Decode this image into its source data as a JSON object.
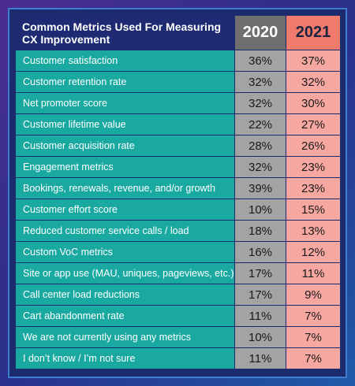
{
  "chart_data": {
    "type": "table",
    "title": "Common Metrics Used For Measuring CX Improvement",
    "columns": [
      "2020",
      "2021"
    ],
    "rows": [
      {
        "label": "Customer satisfaction",
        "v2020": "36%",
        "v2021": "37%"
      },
      {
        "label": "Customer retention rate",
        "v2020": "32%",
        "v2021": "32%"
      },
      {
        "label": "Net promoter score",
        "v2020": "32%",
        "v2021": "30%"
      },
      {
        "label": "Customer lifetime value",
        "v2020": "22%",
        "v2021": "27%"
      },
      {
        "label": "Customer acquisition rate",
        "v2020": "28%",
        "v2021": "26%"
      },
      {
        "label": "Engagement metrics",
        "v2020": "32%",
        "v2021": "23%"
      },
      {
        "label": "Bookings, renewals, revenue, and/or growth",
        "v2020": "39%",
        "v2021": "23%"
      },
      {
        "label": "Customer effort score",
        "v2020": "10%",
        "v2021": "15%"
      },
      {
        "label": "Reduced customer service calls / load",
        "v2020": "18%",
        "v2021": "13%"
      },
      {
        "label": "Custom VoC metrics",
        "v2020": "16%",
        "v2021": "12%"
      },
      {
        "label": "Site or app use (MAU, uniques, pageviews, etc.)",
        "v2020": "17%",
        "v2021": "11%"
      },
      {
        "label": "Call center load reductions",
        "v2020": "17%",
        "v2021": "9%"
      },
      {
        "label": "Cart abandonment rate",
        "v2020": "11%",
        "v2021": "7%"
      },
      {
        "label": "We are not currently using any metrics",
        "v2020": "10%",
        "v2021": "7%"
      },
      {
        "label": "I don’t know / I’m not sure",
        "v2020": "11%",
        "v2021": "7%"
      }
    ]
  }
}
